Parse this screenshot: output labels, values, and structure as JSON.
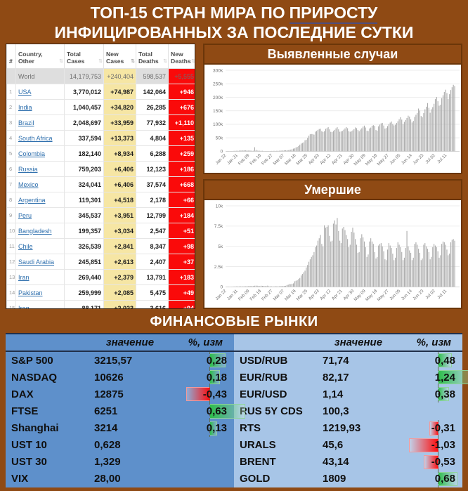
{
  "title": {
    "line1_prefix": "ТОП-15 СТРАН МИРА ПО",
    "line1_underlined": "ПРИРОСТУ",
    "line2": "ИНФИЦИРОВАННЫХ ЗА ПОСЛЕДНИЕ СУТКИ"
  },
  "covid_table": {
    "headers": [
      "#",
      "Country, Other",
      "Total Cases",
      "New Cases",
      "Total Deaths",
      "New Deaths"
    ],
    "sort_icon": "⇅",
    "world_row": {
      "country": "World",
      "total_cases": "14,179,753",
      "new_cases": "+240,404",
      "total_deaths": "598,537",
      "new_deaths": "+5,555"
    },
    "rows": [
      {
        "rank": 1,
        "country": "USA",
        "total_cases": "3,770,012",
        "new_cases": "+74,987",
        "total_deaths": "142,064",
        "new_deaths": "+946"
      },
      {
        "rank": 2,
        "country": "India",
        "total_cases": "1,040,457",
        "new_cases": "+34,820",
        "total_deaths": "26,285",
        "new_deaths": "+676"
      },
      {
        "rank": 3,
        "country": "Brazil",
        "total_cases": "2,048,697",
        "new_cases": "+33,959",
        "total_deaths": "77,932",
        "new_deaths": "+1,110"
      },
      {
        "rank": 4,
        "country": "South Africa",
        "total_cases": "337,594",
        "new_cases": "+13,373",
        "total_deaths": "4,804",
        "new_deaths": "+135"
      },
      {
        "rank": 5,
        "country": "Colombia",
        "total_cases": "182,140",
        "new_cases": "+8,934",
        "total_deaths": "6,288",
        "new_deaths": "+259"
      },
      {
        "rank": 6,
        "country": "Russia",
        "total_cases": "759,203",
        "new_cases": "+6,406",
        "total_deaths": "12,123",
        "new_deaths": "+186"
      },
      {
        "rank": 7,
        "country": "Mexico",
        "total_cases": "324,041",
        "new_cases": "+6,406",
        "total_deaths": "37,574",
        "new_deaths": "+668"
      },
      {
        "rank": 8,
        "country": "Argentina",
        "total_cases": "119,301",
        "new_cases": "+4,518",
        "total_deaths": "2,178",
        "new_deaths": "+66"
      },
      {
        "rank": 9,
        "country": "Peru",
        "total_cases": "345,537",
        "new_cases": "+3,951",
        "total_deaths": "12,799",
        "new_deaths": "+184"
      },
      {
        "rank": 10,
        "country": "Bangladesh",
        "total_cases": "199,357",
        "new_cases": "+3,034",
        "total_deaths": "2,547",
        "new_deaths": "+51"
      },
      {
        "rank": 11,
        "country": "Chile",
        "total_cases": "326,539",
        "new_cases": "+2,841",
        "total_deaths": "8,347",
        "new_deaths": "+98"
      },
      {
        "rank": 12,
        "country": "Saudi Arabia",
        "total_cases": "245,851",
        "new_cases": "+2,613",
        "total_deaths": "2,407",
        "new_deaths": "+37"
      },
      {
        "rank": 13,
        "country": "Iran",
        "total_cases": "269,440",
        "new_cases": "+2,379",
        "total_deaths": "13,791",
        "new_deaths": "+183"
      },
      {
        "rank": 14,
        "country": "Pakistan",
        "total_cases": "259,999",
        "new_cases": "+2,085",
        "total_deaths": "5,475",
        "new_deaths": "+49"
      },
      {
        "rank": 15,
        "country": "Iraq",
        "total_cases": "88,171",
        "new_cases": "+2,023",
        "total_deaths": "3,616",
        "new_deaths": "+94"
      }
    ]
  },
  "chart_data": [
    {
      "type": "bar",
      "title": "Выявленные случаи",
      "xlabel": "",
      "ylabel": "",
      "ylim": [
        0,
        300
      ],
      "unit": "thousands per day",
      "grid": true,
      "bar_color": "#ABABAB",
      "yticks": [
        {
          "v": 0,
          "label": "0"
        },
        {
          "v": 50,
          "label": "50k"
        },
        {
          "v": 100,
          "label": "100k"
        },
        {
          "v": 150,
          "label": "150k"
        },
        {
          "v": 200,
          "label": "200k"
        },
        {
          "v": 250,
          "label": "250k"
        },
        {
          "v": 300,
          "label": "300k"
        }
      ],
      "x_tick_step": 9,
      "x_tick_labels": [
        "Jan 22",
        "Jan 31",
        "Feb 09",
        "Feb 18",
        "Feb 27",
        "Mar 07",
        "Mar 16",
        "Mar 25",
        "Apr 03",
        "Apr 12",
        "Apr 21",
        "Apr 30",
        "May 09",
        "May 18",
        "May 27",
        "Jun 05",
        "Jun 14",
        "Jun 23",
        "Jul 02",
        "Jul 11"
      ],
      "values": [
        0.5,
        0.6,
        0.7,
        0.8,
        0.8,
        0.9,
        1.8,
        1.8,
        2.0,
        2.1,
        2.6,
        2.8,
        3.2,
        3.4,
        3.9,
        3.2,
        3.4,
        2.7,
        3.0,
        2.6,
        2.1,
        2.0,
        15.1,
        5.1,
        2.7,
        2.2,
        2.1,
        1.9,
        1.8,
        0.6,
        0.9,
        1.0,
        0.6,
        0.9,
        1.1,
        1.4,
        1.4,
        1.8,
        1.4,
        1.7,
        1.9,
        2.1,
        2.4,
        2.9,
        3.1,
        3.9,
        3.6,
        4.0,
        4.3,
        5.2,
        6.3,
        7.5,
        9.9,
        10.9,
        13.9,
        16.6,
        19.6,
        24.6,
        28.7,
        30.9,
        33.1,
        40.8,
        43.0,
        49.3,
        57.7,
        63.2,
        64.0,
        63.9,
        61.7,
        72.8,
        75.1,
        79.5,
        82.5,
        83.4,
        74.7,
        71.9,
        74.4,
        83.1,
        85.5,
        89.4,
        81.3,
        72.1,
        71.0,
        75.4,
        79.6,
        84.9,
        89.2,
        81.4,
        72.5,
        73.6,
        75.5,
        80.1,
        84.6,
        89.6,
        85.4,
        74.6,
        72.4,
        74.0,
        77.3,
        81.7,
        88.3,
        85.6,
        78.9,
        74.3,
        80.5,
        85.2,
        91.3,
        95.1,
        88.2,
        76.3,
        75.0,
        84.5,
        87.9,
        94.6,
        96.7,
        94.1,
        78.8,
        76.5,
        92.3,
        98.9,
        103.5,
        105.3,
        95.6,
        84.1,
        86.2,
        93.4,
        100.6,
        106.3,
        110.2,
        101.5,
        96.0,
        98.4,
        104.9,
        111.2,
        118.7,
        126.0,
        117.3,
        100.5,
        108.9,
        116.1,
        123.3,
        131.9,
        128.4,
        118.5,
        106.8,
        112.6,
        127.5,
        135.2,
        142.1,
        158.3,
        151.0,
        130.7,
        125.9,
        141.3,
        155.6,
        165.0,
        178.5,
        161.2,
        142.8,
        155.7,
        163.5,
        175.9,
        193.2,
        201.1,
        185.4,
        168.9,
        172.3,
        196.8,
        207.4,
        219.5,
        228.1,
        215.6,
        193.3,
        211.4,
        226.8,
        237.2,
        246.1,
        241.9
      ]
    },
    {
      "type": "bar",
      "title": "Умершие",
      "xlabel": "",
      "ylabel": "",
      "ylim": [
        0,
        10
      ],
      "unit": "thousands per day",
      "grid": true,
      "bar_color": "#ABABAB",
      "yticks": [
        {
          "v": 0,
          "label": "0"
        },
        {
          "v": 2.5,
          "label": "2.5k"
        },
        {
          "v": 5,
          "label": "5k"
        },
        {
          "v": 7.5,
          "label": "7.5k"
        },
        {
          "v": 10,
          "label": "10k"
        }
      ],
      "x_tick_step": 9,
      "x_tick_labels": [
        "Jan 22",
        "Jan 31",
        "Feb 09",
        "Feb 18",
        "Feb 27",
        "Mar 07",
        "Mar 16",
        "Mar 25",
        "Apr 03",
        "Apr 12",
        "Apr 21",
        "Apr 30",
        "May 09",
        "May 18",
        "May 27",
        "Jun 05",
        "Jun 14",
        "Jun 23",
        "Jul 02",
        "Jul 11"
      ],
      "values": [
        0.02,
        0.02,
        0.03,
        0.03,
        0.03,
        0.04,
        0.05,
        0.05,
        0.06,
        0.06,
        0.06,
        0.07,
        0.06,
        0.07,
        0.07,
        0.07,
        0.09,
        0.09,
        0.1,
        0.11,
        0.1,
        0.1,
        0.14,
        0.15,
        0.14,
        0.11,
        0.1,
        0.14,
        0.12,
        0.12,
        0.11,
        0.1,
        0.15,
        0.08,
        0.07,
        0.07,
        0.06,
        0.06,
        0.09,
        0.06,
        0.07,
        0.08,
        0.09,
        0.1,
        0.11,
        0.12,
        0.13,
        0.22,
        0.27,
        0.35,
        0.33,
        0.39,
        0.43,
        0.69,
        0.75,
        0.82,
        0.96,
        1.1,
        1.4,
        1.6,
        1.8,
        2.0,
        2.4,
        2.7,
        3.1,
        3.4,
        3.7,
        3.9,
        4.3,
        4.9,
        5.1,
        5.7,
        6.0,
        6.4,
        5.3,
        5.0,
        7.6,
        7.3,
        7.4,
        7.6,
        6.3,
        5.6,
        5.7,
        7.8,
        8.2,
        7.7,
        8.5,
        6.9,
        5.7,
        5.4,
        7.2,
        7.4,
        7.0,
        6.4,
        5.9,
        4.9,
        5.2,
        6.8,
        7.3,
        6.7,
        5.9,
        5.2,
        4.2,
        4.3,
        6.0,
        6.5,
        6.1,
        5.6,
        4.9,
        3.7,
        4.0,
        5.6,
        6.0,
        5.6,
        5.3,
        4.3,
        3.5,
        3.7,
        5.1,
        5.3,
        5.4,
        5.0,
        4.4,
        3.4,
        3.3,
        4.6,
        5.4,
        5.1,
        4.8,
        4.1,
        3.3,
        3.6,
        4.8,
        5.5,
        5.2,
        4.9,
        4.3,
        3.3,
        3.6,
        4.8,
        6.9,
        5.0,
        4.5,
        4.2,
        3.3,
        3.6,
        5.3,
        5.5,
        5.2,
        4.7,
        4.2,
        3.3,
        3.5,
        5.2,
        5.4,
        5.0,
        4.7,
        4.3,
        3.4,
        3.7,
        4.9,
        5.3,
        5.1,
        4.9,
        4.4,
        3.6,
        3.9,
        5.3,
        5.6,
        5.5,
        5.2,
        4.6,
        3.9,
        4.1,
        5.5,
        5.8,
        5.9,
        5.7
      ]
    }
  ],
  "markets": {
    "title": "ФИНАНСОВЫЕ РЫНКИ",
    "col_value": "значение",
    "col_change": "%, изм",
    "colors": {
      "positive_bar": "#2FBE4B",
      "negative_bar": "#FF0A0A",
      "left_bg": "#5E90CB",
      "right_bg": "#A7C5E7"
    },
    "left": {
      "rows": [
        {
          "name": "S&P 500",
          "value": "3215,57",
          "change": "0,28",
          "change_num": 0.28
        },
        {
          "name": "NASDAQ",
          "value": "10626",
          "change": "0,18",
          "change_num": 0.18
        },
        {
          "name": "DAX",
          "value": "12875",
          "change": "-0,43",
          "change_num": -0.43
        },
        {
          "name": "FTSE",
          "value": "6251",
          "change": "0,63",
          "change_num": 0.63
        },
        {
          "name": "Shanghai",
          "value": "3214",
          "change": "0,13",
          "change_num": 0.13
        },
        {
          "name": "UST 10",
          "value": "0,628",
          "change": null,
          "change_num": null
        },
        {
          "name": "UST 30",
          "value": "1,329",
          "change": null,
          "change_num": null
        },
        {
          "name": "VIX",
          "value": "28,00",
          "change": null,
          "change_num": null
        }
      ]
    },
    "right": {
      "rows": [
        {
          "name": "USD/RUB",
          "value": "71,74",
          "change": "0,48",
          "change_num": 0.48
        },
        {
          "name": "EUR/RUB",
          "value": "82,17",
          "change": "1,24",
          "change_num": 1.24
        },
        {
          "name": "EUR/USD",
          "value": "1,14",
          "change": "0,38",
          "change_num": 0.38
        },
        {
          "name": "RUS 5Y CDS",
          "value": "100,3",
          "change": null,
          "change_num": null
        },
        {
          "name": "RTS",
          "value": "1219,93",
          "change": "-0,31",
          "change_num": -0.31
        },
        {
          "name": "URALS",
          "value": "45,6",
          "change": "-1,03",
          "change_num": -1.03
        },
        {
          "name": "BRENT",
          "value": "43,14",
          "change": "-0,53",
          "change_num": -0.53
        },
        {
          "name": "GOLD",
          "value": "1809",
          "change": "0,68",
          "change_num": 0.68
        }
      ]
    }
  }
}
